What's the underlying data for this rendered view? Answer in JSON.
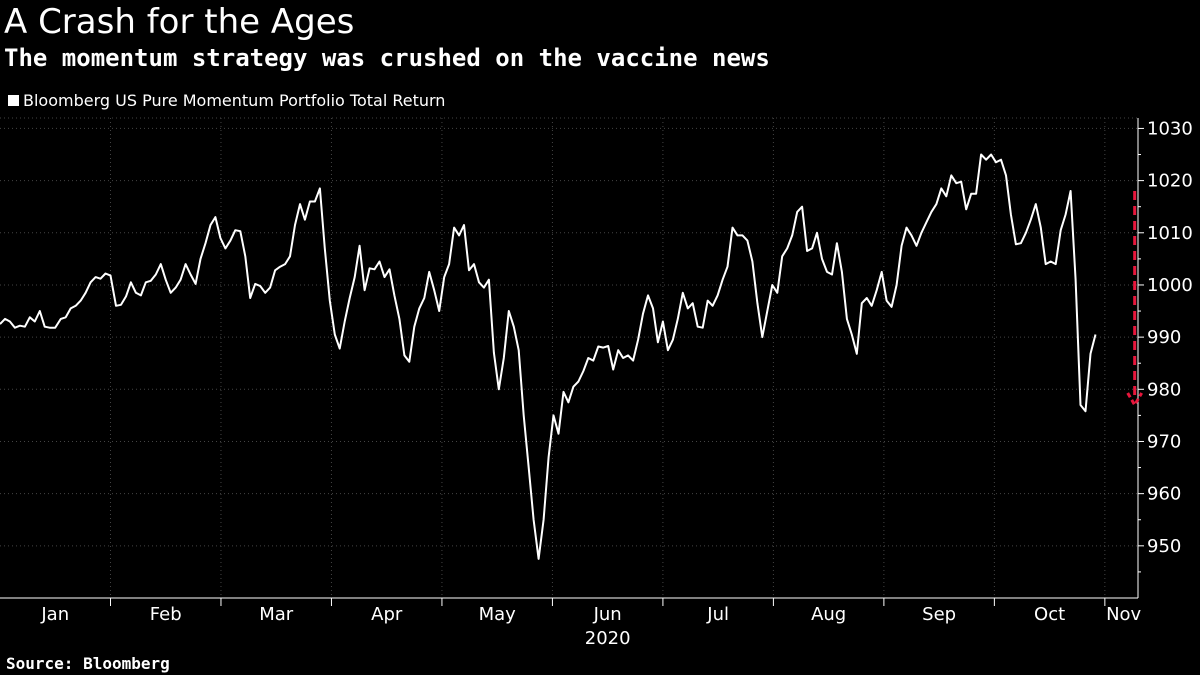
{
  "title": "A Crash for the Ages",
  "subtitle": "The momentum strategy was crushed on the vaccine news",
  "source": "Source: Bloomberg",
  "colors": {
    "background": "#000000",
    "line": "#ffffff",
    "annotation": "#e8163c",
    "grid": "#444444"
  },
  "chart_data": {
    "type": "line",
    "title": "A Crash for the Ages",
    "subtitle": "The momentum strategy was crushed on the vaccine news",
    "legend": [
      "Bloomberg US Pure Momentum Portfolio Total Return"
    ],
    "legend_position": "top-left",
    "xlabel": "2020",
    "ylabel": "",
    "x_range": [
      0,
      10.3
    ],
    "ylim": [
      940,
      1032
    ],
    "y_ticks": [
      950,
      960,
      970,
      980,
      990,
      1000,
      1010,
      1020,
      1030
    ],
    "x_ticks": [
      {
        "label": "Jan",
        "pos": 0.5
      },
      {
        "label": "Feb",
        "pos": 1.5
      },
      {
        "label": "Mar",
        "pos": 2.5
      },
      {
        "label": "Apr",
        "pos": 3.5
      },
      {
        "label": "May",
        "pos": 4.5
      },
      {
        "label": "Jun",
        "pos": 5.5
      },
      {
        "label": "Jul",
        "pos": 6.5
      },
      {
        "label": "Aug",
        "pos": 7.5
      },
      {
        "label": "Sep",
        "pos": 8.5
      },
      {
        "label": "Oct",
        "pos": 9.5
      },
      {
        "label": "Nov",
        "pos": 10.17
      }
    ],
    "x_boundaries": [
      1,
      2,
      3,
      4,
      5,
      6,
      7,
      8,
      9,
      10
    ],
    "grid": true,
    "series": [
      {
        "name": "Bloomberg US Pure Momentum Portfolio Total Return",
        "points": [
          [
            0.0,
            992.5
          ],
          [
            0.045,
            993.5
          ],
          [
            0.09,
            993.0
          ],
          [
            0.135,
            991.8
          ],
          [
            0.18,
            992.2
          ],
          [
            0.225,
            992.0
          ],
          [
            0.27,
            993.8
          ],
          [
            0.315,
            993.0
          ],
          [
            0.36,
            995.0
          ],
          [
            0.405,
            992.0
          ],
          [
            0.45,
            991.8
          ],
          [
            0.5,
            991.8
          ],
          [
            0.55,
            993.5
          ],
          [
            0.595,
            993.8
          ],
          [
            0.64,
            995.5
          ],
          [
            0.685,
            996.0
          ],
          [
            0.73,
            997.0
          ],
          [
            0.775,
            998.5
          ],
          [
            0.82,
            1000.5
          ],
          [
            0.865,
            1001.5
          ],
          [
            0.91,
            1001.2
          ],
          [
            0.955,
            1002.2
          ],
          [
            1.0,
            1001.8
          ],
          [
            1.05,
            996.0
          ],
          [
            1.095,
            996.2
          ],
          [
            1.14,
            997.8
          ],
          [
            1.185,
            1000.5
          ],
          [
            1.23,
            998.5
          ],
          [
            1.275,
            998.0
          ],
          [
            1.32,
            1000.5
          ],
          [
            1.365,
            1000.8
          ],
          [
            1.41,
            1002.0
          ],
          [
            1.455,
            1004.0
          ],
          [
            1.5,
            1001.0
          ],
          [
            1.545,
            998.5
          ],
          [
            1.59,
            999.5
          ],
          [
            1.635,
            1001.0
          ],
          [
            1.68,
            1004.0
          ],
          [
            1.725,
            1002.0
          ],
          [
            1.77,
            1000.2
          ],
          [
            1.815,
            1005.0
          ],
          [
            1.86,
            1008.0
          ],
          [
            1.905,
            1011.5
          ],
          [
            1.95,
            1013.0
          ],
          [
            1.995,
            1009.0
          ],
          [
            2.04,
            1007.0
          ],
          [
            2.085,
            1008.5
          ],
          [
            2.13,
            1010.5
          ],
          [
            2.175,
            1010.3
          ],
          [
            2.22,
            1005.5
          ],
          [
            2.265,
            997.5
          ],
          [
            2.31,
            1000.2
          ],
          [
            2.355,
            999.8
          ],
          [
            2.4,
            998.5
          ],
          [
            2.445,
            999.5
          ],
          [
            2.49,
            1002.8
          ],
          [
            2.535,
            1003.5
          ],
          [
            2.58,
            1004.0
          ],
          [
            2.625,
            1005.5
          ],
          [
            2.67,
            1011.5
          ],
          [
            2.715,
            1015.5
          ],
          [
            2.76,
            1012.5
          ],
          [
            2.805,
            1016.0
          ],
          [
            2.85,
            1016.0
          ],
          [
            2.895,
            1018.5
          ],
          [
            2.94,
            1007.0
          ],
          [
            2.985,
            997.0
          ],
          [
            3.03,
            990.5
          ],
          [
            3.075,
            987.8
          ],
          [
            3.12,
            993.0
          ],
          [
            3.165,
            997.5
          ],
          [
            3.21,
            1001.5
          ],
          [
            3.255,
            1007.5
          ],
          [
            3.3,
            999.0
          ],
          [
            3.345,
            1003.2
          ],
          [
            3.39,
            1003.0
          ],
          [
            3.435,
            1004.5
          ],
          [
            3.48,
            1001.5
          ],
          [
            3.525,
            1003.0
          ],
          [
            3.57,
            998.0
          ],
          [
            3.615,
            993.5
          ],
          [
            3.66,
            986.5
          ],
          [
            3.705,
            985.3
          ],
          [
            3.75,
            992.0
          ],
          [
            3.795,
            995.5
          ],
          [
            3.84,
            997.5
          ],
          [
            3.885,
            1002.5
          ],
          [
            3.93,
            999.0
          ],
          [
            3.975,
            995.0
          ],
          [
            4.02,
            1001.5
          ],
          [
            4.065,
            1004.0
          ],
          [
            4.11,
            1011.0
          ],
          [
            4.155,
            1009.5
          ],
          [
            4.2,
            1011.5
          ],
          [
            4.245,
            1002.8
          ],
          [
            4.29,
            1004.0
          ],
          [
            4.335,
            1000.5
          ],
          [
            4.38,
            999.5
          ],
          [
            4.425,
            1001.0
          ],
          [
            4.47,
            987.0
          ],
          [
            4.515,
            980.0
          ],
          [
            4.56,
            986.0
          ],
          [
            4.605,
            995.0
          ],
          [
            4.65,
            992.0
          ],
          [
            4.695,
            987.5
          ],
          [
            4.74,
            975.0
          ],
          [
            4.785,
            965.0
          ],
          [
            4.83,
            955.0
          ],
          [
            4.875,
            947.5
          ],
          [
            4.92,
            955.0
          ],
          [
            4.965,
            967.0
          ],
          [
            5.01,
            975.0
          ],
          [
            5.055,
            971.5
          ],
          [
            5.1,
            979.5
          ],
          [
            5.145,
            977.5
          ],
          [
            5.19,
            980.5
          ],
          [
            5.235,
            981.5
          ],
          [
            5.28,
            983.5
          ],
          [
            5.325,
            986.0
          ],
          [
            5.37,
            985.5
          ],
          [
            5.415,
            988.2
          ],
          [
            5.46,
            988.0
          ],
          [
            5.505,
            988.3
          ],
          [
            5.55,
            983.8
          ],
          [
            5.595,
            987.5
          ],
          [
            5.64,
            986.0
          ],
          [
            5.685,
            986.5
          ],
          [
            5.73,
            985.5
          ],
          [
            5.775,
            989.5
          ],
          [
            5.82,
            994.5
          ],
          [
            5.865,
            998.0
          ],
          [
            5.91,
            995.5
          ],
          [
            5.955,
            989.0
          ],
          [
            6.0,
            993.0
          ],
          [
            6.045,
            987.5
          ],
          [
            6.09,
            989.5
          ],
          [
            6.135,
            993.5
          ],
          [
            6.18,
            998.5
          ],
          [
            6.225,
            995.5
          ],
          [
            6.27,
            996.5
          ],
          [
            6.315,
            992.0
          ],
          [
            6.36,
            991.8
          ],
          [
            6.405,
            997.0
          ],
          [
            6.45,
            996.0
          ],
          [
            6.495,
            998.0
          ],
          [
            6.54,
            1001.0
          ],
          [
            6.585,
            1003.5
          ],
          [
            6.63,
            1011.0
          ],
          [
            6.675,
            1009.5
          ],
          [
            6.72,
            1009.5
          ],
          [
            6.765,
            1008.5
          ],
          [
            6.81,
            1004.5
          ],
          [
            6.855,
            996.5
          ],
          [
            6.9,
            990.0
          ],
          [
            6.945,
            995.0
          ],
          [
            6.99,
            1000.0
          ],
          [
            7.035,
            998.5
          ],
          [
            7.08,
            1005.5
          ],
          [
            7.125,
            1007.0
          ],
          [
            7.17,
            1009.5
          ],
          [
            7.215,
            1014.0
          ],
          [
            7.26,
            1015.0
          ],
          [
            7.305,
            1006.5
          ],
          [
            7.35,
            1007.0
          ],
          [
            7.395,
            1010.0
          ],
          [
            7.44,
            1005.0
          ],
          [
            7.485,
            1002.5
          ],
          [
            7.53,
            1002.0
          ],
          [
            7.575,
            1008.0
          ],
          [
            7.62,
            1002.5
          ],
          [
            7.665,
            993.5
          ],
          [
            7.71,
            990.5
          ],
          [
            7.755,
            986.8
          ],
          [
            7.8,
            996.5
          ],
          [
            7.845,
            997.5
          ],
          [
            7.89,
            996.0
          ],
          [
            7.935,
            999.0
          ],
          [
            7.98,
            1002.5
          ],
          [
            8.025,
            997.0
          ],
          [
            8.07,
            995.8
          ],
          [
            8.115,
            1000.0
          ],
          [
            8.16,
            1007.5
          ],
          [
            8.205,
            1011.0
          ],
          [
            8.25,
            1009.5
          ],
          [
            8.295,
            1007.5
          ],
          [
            8.34,
            1010.0
          ],
          [
            8.385,
            1012.0
          ],
          [
            8.43,
            1014.0
          ],
          [
            8.475,
            1015.5
          ],
          [
            8.52,
            1018.5
          ],
          [
            8.565,
            1017.0
          ],
          [
            8.61,
            1021.0
          ],
          [
            8.655,
            1019.5
          ],
          [
            8.7,
            1019.8
          ],
          [
            8.745,
            1014.5
          ],
          [
            8.79,
            1017.5
          ],
          [
            8.835,
            1017.5
          ],
          [
            8.88,
            1025.0
          ],
          [
            8.925,
            1024.0
          ],
          [
            8.97,
            1025.0
          ],
          [
            9.015,
            1023.5
          ],
          [
            9.06,
            1024.0
          ],
          [
            9.105,
            1021.0
          ],
          [
            9.15,
            1013.5
          ],
          [
            9.195,
            1007.8
          ],
          [
            9.24,
            1008.0
          ],
          [
            9.285,
            1010.0
          ],
          [
            9.33,
            1012.5
          ],
          [
            9.375,
            1015.5
          ],
          [
            9.42,
            1011.0
          ],
          [
            9.465,
            1004.0
          ],
          [
            9.51,
            1004.5
          ],
          [
            9.555,
            1004.0
          ],
          [
            9.6,
            1010.5
          ],
          [
            9.645,
            1013.5
          ],
          [
            9.69,
            1018.0
          ],
          [
            9.735,
            1001.0
          ],
          [
            9.78,
            977.0
          ],
          [
            9.825,
            975.8
          ],
          [
            9.87,
            986.8
          ],
          [
            9.915,
            990.5
          ]
        ]
      }
    ],
    "annotations": [
      {
        "type": "dashed-arrow",
        "x": 10.27,
        "y_from": 1018,
        "y_to": 977
      }
    ]
  }
}
